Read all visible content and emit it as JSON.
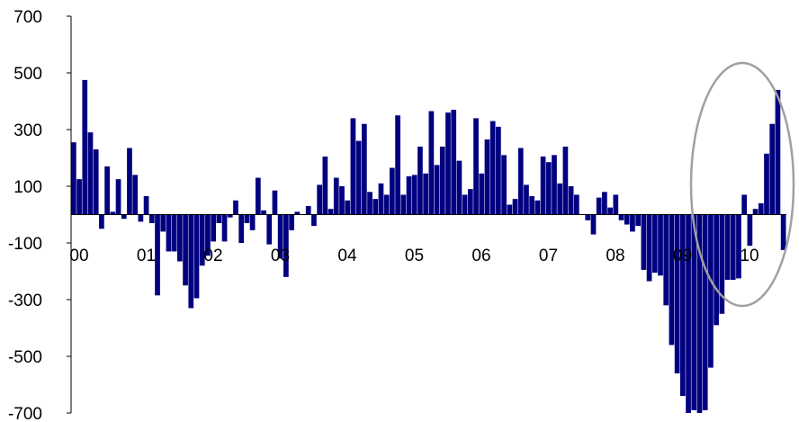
{
  "chart_data": {
    "type": "bar",
    "title": "",
    "xlabel": "",
    "ylabel": "",
    "ylim": [
      -700,
      700
    ],
    "yticks": [
      700,
      500,
      300,
      100,
      -100,
      -300,
      -500,
      -700
    ],
    "xtick_labels": [
      "00",
      "01",
      "02",
      "03",
      "04",
      "05",
      "06",
      "07",
      "08",
      "09",
      "10"
    ],
    "bar_color": "#000080",
    "annotation_color": "#a0a0a0",
    "annotation": "ellipse highlighting recent 2010 values",
    "values": [
      255,
      125,
      475,
      290,
      230,
      -50,
      170,
      10,
      125,
      -15,
      235,
      140,
      -25,
      65,
      -30,
      -285,
      -60,
      -130,
      -130,
      -165,
      -250,
      -330,
      -295,
      -180,
      -145,
      -95,
      -30,
      -95,
      -10,
      50,
      -100,
      -30,
      -55,
      130,
      15,
      -105,
      85,
      -155,
      -220,
      -55,
      10,
      0,
      30,
      -40,
      105,
      205,
      20,
      130,
      100,
      50,
      340,
      260,
      320,
      80,
      55,
      110,
      70,
      165,
      350,
      70,
      135,
      140,
      240,
      145,
      365,
      175,
      240,
      360,
      370,
      190,
      70,
      90,
      340,
      145,
      265,
      330,
      310,
      210,
      35,
      55,
      235,
      105,
      65,
      50,
      205,
      185,
      210,
      110,
      240,
      100,
      70,
      0,
      -20,
      -70,
      60,
      80,
      25,
      70,
      -20,
      -35,
      -60,
      -40,
      -195,
      -235,
      -205,
      -215,
      -320,
      -460,
      -560,
      -640,
      -700,
      -690,
      -700,
      -690,
      -540,
      -390,
      -350,
      -230,
      -230,
      -225,
      70,
      -110,
      20,
      40,
      215,
      320,
      440,
      -125
    ]
  }
}
